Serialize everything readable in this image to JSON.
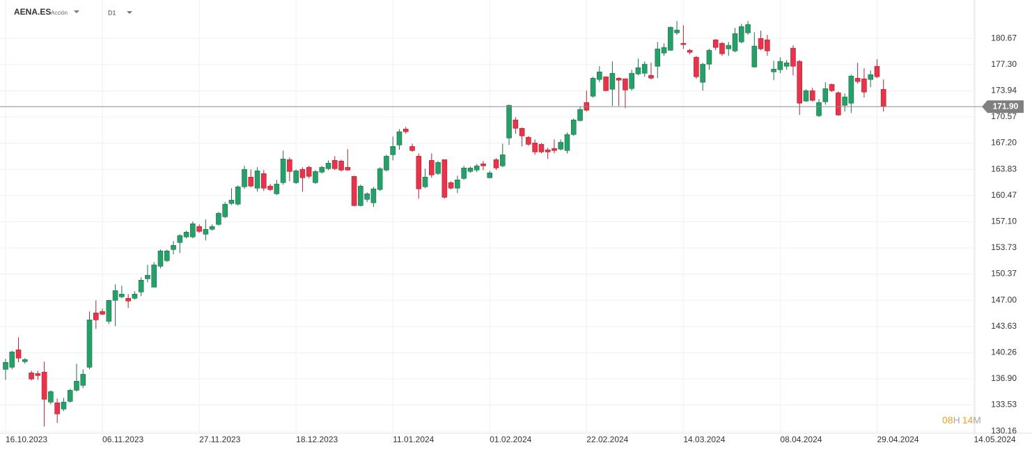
{
  "header": {
    "symbol": "AENA.ES",
    "kind": "Acción",
    "timeframe": "D1"
  },
  "timer": {
    "hours": "08",
    "hours_unit": "H",
    "minutes": "14",
    "minutes_unit": "M"
  },
  "chart_data": {
    "type": "candlestick",
    "up_color": "#26a069",
    "down_color": "#e8334a",
    "grid": true,
    "ylim": [
      129.9,
      184.0
    ],
    "yticks": [
      130.16,
      133.53,
      {
        "value": 136.9,
        "label": "136.90"
      },
      140.26,
      143.63,
      {
        "value": 147,
        "label": "147.00"
      },
      150.37,
      153.73,
      {
        "value": 157.1,
        "label": "157.10"
      },
      160.47,
      163.83,
      {
        "value": 167.2,
        "label": "167.20"
      },
      170.57,
      173.94,
      {
        "value": 177.3,
        "label": "177.30"
      },
      180.67
    ],
    "last_price": {
      "value": 171.9,
      "label": "171.90"
    },
    "categories": [
      "16.10.2023",
      null,
      null,
      null,
      null,
      null,
      null,
      null,
      null,
      null,
      null,
      null,
      null,
      null,
      null,
      "06.11.2023",
      null,
      null,
      null,
      null,
      null,
      null,
      null,
      null,
      null,
      null,
      null,
      null,
      null,
      null,
      "27.11.2023",
      null,
      null,
      null,
      null,
      null,
      null,
      null,
      null,
      null,
      null,
      null,
      null,
      null,
      null,
      "18.12.2023",
      null,
      null,
      null,
      null,
      null,
      null,
      null,
      null,
      null,
      null,
      null,
      null,
      null,
      null,
      "11.01.2024",
      null,
      null,
      null,
      null,
      null,
      null,
      null,
      null,
      null,
      null,
      null,
      null,
      null,
      null,
      "01.02.2024",
      null,
      null,
      null,
      null,
      null,
      null,
      null,
      null,
      null,
      null,
      null,
      null,
      null,
      null,
      "22.02.2024",
      null,
      null,
      null,
      null,
      null,
      null,
      null,
      null,
      null,
      null,
      null,
      null,
      null,
      null,
      "14.03.2024",
      null,
      null,
      null,
      null,
      null,
      null,
      null,
      null,
      null,
      null,
      null,
      null,
      null,
      null,
      "08.04.2024",
      null,
      null,
      null,
      null,
      null,
      null,
      null,
      null,
      null,
      null,
      null,
      null,
      null,
      null,
      "29.04.2024",
      null,
      null,
      null,
      null,
      null,
      null,
      null,
      null,
      null,
      null,
      null,
      null,
      null,
      null,
      "14.05.2024"
    ],
    "open": [
      138.11,
      138.38,
      140.62,
      139.1,
      137.66,
      137.57,
      137.75,
      133.9,
      133.81,
      133.0,
      133.99,
      135.42,
      136.05,
      138.38,
      145.37,
      145.55,
      144.29,
      146.98,
      147.43,
      147.25,
      147.25,
      148.06,
      149.76,
      148.68,
      151.37,
      152.09,
      153.52,
      154.42,
      155.14,
      155.14,
      156.48,
      155.49,
      156.12,
      156.75,
      157.73,
      159.44,
      159.35,
      161.59,
      162.84,
      161.41,
      163.29,
      161.68,
      160.69,
      162.12,
      165.08,
      162.12,
      163.83,
      164.1,
      162.12,
      163.47,
      163.92,
      164.99,
      164.9,
      164.1,
      162.93,
      159.17,
      159.97,
      159.53,
      161.23,
      163.74,
      165.71,
      166.96,
      169.02,
      166.78,
      165.53,
      161.59,
      164.99,
      163.29,
      165.08,
      162.12,
      161.41,
      162.66,
      163.56,
      163.74,
      164.54,
      162.75,
      165.08,
      164.28,
      167.86,
      170.19,
      169.11,
      167.95,
      167.23,
      167.05,
      166.34,
      166.52,
      166.43,
      166.25,
      168.31,
      170.1,
      172.43,
      173.24,
      175.39,
      175.74,
      174.13,
      175.56,
      175.48,
      174.22,
      176.1,
      176.19,
      175.92,
      177.09,
      178.79,
      179.15,
      181.39,
      180.04,
      179.15,
      178.25,
      175.03,
      177.36,
      180.49,
      180.04,
      179.33,
      179.06,
      180.22,
      181.39,
      177.0,
      180.67,
      180.49,
      176.37,
      176.64,
      177.09,
      179.42,
      177.72,
      172.61,
      173.95,
      170.73,
      172.52,
      174.76,
      173.68,
      172.07,
      172.34,
      175.56,
      175.48,
      175.39,
      177.09,
      174.13,
      null,
      null,
      null,
      null,
      null,
      null,
      null,
      null,
      null,
      null,
      null,
      null,
      null,
      null
    ],
    "high": [
      139.46,
      140.53,
      142.23,
      139.55,
      137.93,
      137.93,
      139.1,
      135.42,
      134.35,
      134.44,
      135.6,
      138.83,
      138.11,
      145.55,
      146.98,
      145.91,
      147.07,
      149.04,
      148.86,
      147.79,
      148.15,
      149.94,
      151.55,
      151.91,
      153.52,
      153.52,
      154.6,
      155.49,
      155.94,
      157.11,
      156.75,
      157.38,
      156.75,
      158.36,
      159.62,
      161.41,
      161.77,
      164.28,
      163.83,
      164.1,
      163.74,
      161.95,
      162.48,
      166.25,
      165.35,
      163.83,
      164.1,
      164.28,
      163.74,
      164.28,
      164.99,
      165.53,
      165.08,
      166.43,
      163.02,
      161.86,
      160.87,
      161.59,
      164.1,
      165.71,
      168.04,
      169.02,
      169.29,
      167.14,
      165.89,
      163.92,
      165.89,
      164.9,
      165.08,
      162.3,
      163.02,
      164.28,
      164.19,
      164.54,
      164.9,
      163.65,
      165.26,
      167.14,
      172.16,
      170.55,
      169.2,
      168.13,
      167.68,
      167.23,
      166.6,
      167.68,
      167.68,
      168.58,
      170.37,
      171.89,
      173.95,
      175.74,
      177.09,
      175.74,
      177.72,
      175.65,
      175.48,
      176.64,
      178.07,
      177.72,
      177.54,
      180.22,
      180.04,
      182.2,
      182.91,
      182.37,
      179.33,
      178.43,
      177.54,
      179.33,
      180.58,
      180.22,
      180.22,
      182.02,
      182.55,
      182.91,
      181.48,
      181.66,
      181.12,
      177.8,
      178.25,
      177.89,
      179.78,
      177.89,
      174.13,
      174.31,
      172.88,
      175.03,
      174.85,
      173.86,
      173.59,
      176.01,
      177.54,
      176.82,
      176.55,
      177.98,
      175.39,
      null,
      null,
      null,
      null,
      null,
      null,
      null,
      null,
      null,
      null,
      null,
      null,
      null,
      null
    ],
    "low": [
      136.77,
      138.11,
      139.01,
      138.83,
      136.68,
      136.77,
      130.76,
      133.63,
      131.21,
      132.74,
      133.81,
      135.24,
      135.69,
      138.11,
      143.31,
      145.1,
      143.94,
      143.67,
      147.25,
      146.0,
      147.07,
      147.52,
      149.31,
      148.68,
      151.1,
      151.91,
      152.9,
      153.08,
      154.96,
      154.96,
      155.67,
      154.69,
      155.94,
      156.57,
      157.56,
      159.26,
      159.17,
      161.32,
      161.5,
      160.96,
      161.05,
      161.05,
      160.51,
      161.86,
      162.3,
      161.95,
      160.96,
      162.66,
      161.95,
      163.29,
      163.74,
      163.74,
      163.56,
      163.65,
      159.08,
      159.08,
      159.62,
      158.99,
      161.05,
      163.56,
      164.99,
      166.34,
      168.4,
      166.07,
      160.06,
      161.41,
      162.75,
      163.11,
      160.06,
      161.23,
      160.78,
      162.48,
      163.38,
      163.47,
      163.74,
      162.66,
      163.74,
      164.1,
      166.96,
      168.4,
      166.78,
      166.87,
      165.71,
      165.89,
      165.17,
      165.89,
      166.25,
      165.89,
      168.13,
      170.01,
      171.26,
      173.06,
      175.03,
      173.86,
      171.98,
      171.98,
      171.71,
      173.95,
      175.92,
      175.74,
      175.39,
      175.56,
      178.43,
      179.06,
      181.12,
      179.33,
      178.61,
      175.48,
      173.95,
      176.64,
      179.15,
      178.43,
      178.43,
      178.88,
      180.04,
      181.12,
      176.91,
      179.15,
      178.43,
      175.3,
      176.19,
      176.64,
      175.92,
      170.82,
      172.52,
      172.52,
      170.55,
      172.16,
      173.77,
      170.73,
      171.26,
      171.08,
      174.85,
      173.06,
      174.4,
      175.56,
      171.26,
      null,
      null,
      null,
      null,
      null,
      null,
      null,
      null,
      null,
      null,
      null,
      null,
      null,
      null
    ],
    "close": [
      139.01,
      140.35,
      139.55,
      139.37,
      136.86,
      137.31,
      134.26,
      135.24,
      132.38,
      133.9,
      135.42,
      136.59,
      137.48,
      144.47,
      144.47,
      145.19,
      146.98,
      148.24,
      147.79,
      146.89,
      147.79,
      149.58,
      150.21,
      151.55,
      153.34,
      153.34,
      154.06,
      155.32,
      155.76,
      156.84,
      155.85,
      156.12,
      156.48,
      158.18,
      159.35,
      159.88,
      161.59,
      163.83,
      161.68,
      163.65,
      161.41,
      161.23,
      161.95,
      165.17,
      163.56,
      163.65,
      162.75,
      162.93,
      163.56,
      164.1,
      164.63,
      163.92,
      163.74,
      163.74,
      159.17,
      161.68,
      160.69,
      161.32,
      163.92,
      165.53,
      166.78,
      168.67,
      168.67,
      166.25,
      161.32,
      162.84,
      163.11,
      164.72,
      160.24,
      161.41,
      162.48,
      164.01,
      164.01,
      164.28,
      164.28,
      163.38,
      164.01,
      165.71,
      172.07,
      169.11,
      168.13,
      167.05,
      166.07,
      166.07,
      166.07,
      166.25,
      167.32,
      168.31,
      170.19,
      171.53,
      171.44,
      175.56,
      176.37,
      173.95,
      176.19,
      175.3,
      174.04,
      176.19,
      176.91,
      177.36,
      175.56,
      179.33,
      179.51,
      182.11,
      181.75,
      179.87,
      178.88,
      175.74,
      177.36,
      179.15,
      179.51,
      178.7,
      179.78,
      181.3,
      182.2,
      182.46,
      179.69,
      179.33,
      179.06,
      176.73,
      177.72,
      177.54,
      177.09,
      172.34,
      173.95,
      172.7,
      172.43,
      174.22,
      173.95,
      170.82,
      173.15,
      175.83,
      175.12,
      173.77,
      176.01,
      175.74,
      171.9,
      null,
      null,
      null,
      null,
      null,
      null,
      null,
      null,
      null,
      null,
      null,
      null,
      null,
      null
    ]
  }
}
